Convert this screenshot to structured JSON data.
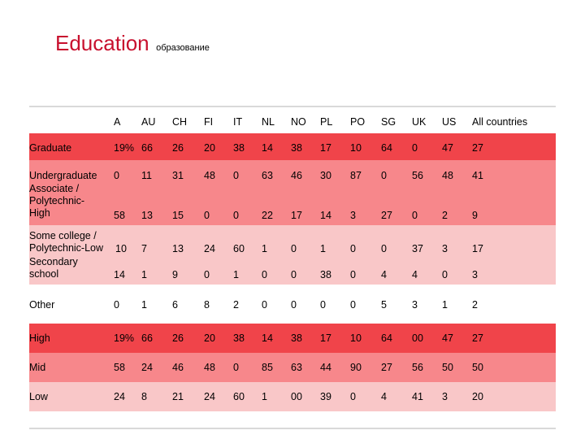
{
  "title": {
    "main": "Education",
    "sub": "образование"
  },
  "columns": [
    "A",
    "AU",
    "CH",
    "FI",
    "IT",
    "NL",
    "NO",
    "PL",
    "PO",
    "SG",
    "UK",
    "US",
    "All countries"
  ],
  "rows": [
    {
      "label": "Graduate",
      "values": [
        "19%",
        "66",
        "26",
        "20",
        "38",
        "14",
        "38",
        "17",
        "10",
        "64",
        "0",
        "47",
        "27"
      ]
    },
    {
      "label": "Undergraduate",
      "values": [
        "0",
        "11",
        "31",
        "48",
        "0",
        "63",
        "46",
        "30",
        "87",
        "0",
        "56",
        "48",
        "41"
      ]
    },
    {
      "label": "Associate / Polytechnic-High",
      "label_lines": [
        "Associate /",
        "Polytechnic-",
        "High"
      ],
      "values": [
        "58",
        "13",
        "15",
        "0",
        "0",
        "22",
        "17",
        "14",
        "3",
        "27",
        "0",
        "2",
        "9"
      ]
    },
    {
      "label": "Some college / Polytechnic-Low",
      "label_lines": [
        "Some college /",
        "Polytechnic-Low"
      ],
      "values": [
        "10",
        "7",
        "13",
        "24",
        "60",
        "1",
        "0",
        "1",
        "0",
        "0",
        "37",
        "3",
        "17"
      ]
    },
    {
      "label": "Secondary school",
      "label_lines": [
        "Secondary",
        "school"
      ],
      "values": [
        "14",
        "1",
        "9",
        "0",
        "1",
        "0",
        "0",
        "38",
        "0",
        "4",
        "4",
        "0",
        "3"
      ]
    },
    {
      "label": "Other",
      "values": [
        "0",
        "1",
        "6",
        "8",
        "2",
        "0",
        "0",
        "0",
        "0",
        "5",
        "3",
        "1",
        "2"
      ]
    },
    {
      "label": "High",
      "values": [
        "19%",
        "66",
        "26",
        "20",
        "38",
        "14",
        "38",
        "17",
        "10",
        "64",
        "00",
        "47",
        "27"
      ]
    },
    {
      "label": "Mid",
      "values": [
        "58",
        "24",
        "46",
        "48",
        "0",
        "85",
        "63",
        "44",
        "90",
        "27",
        "56",
        "50",
        "50"
      ]
    },
    {
      "label": "Low",
      "values": [
        "24",
        "8",
        "21",
        "24",
        "60",
        "1",
        "00",
        "39",
        "0",
        "4",
        "41",
        "3",
        "20"
      ]
    }
  ],
  "colors": {
    "title": "#c8102e",
    "red": "#f0444a",
    "pink_dark": "#f7878b",
    "pink_light": "#f9c7c8",
    "rule": "#d9d9d9"
  }
}
